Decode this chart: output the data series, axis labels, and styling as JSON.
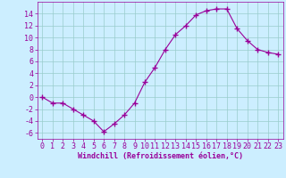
{
  "x": [
    0,
    1,
    2,
    3,
    4,
    5,
    6,
    7,
    8,
    9,
    10,
    11,
    12,
    13,
    14,
    15,
    16,
    17,
    18,
    19,
    20,
    21,
    22,
    23
  ],
  "y": [
    0,
    -1,
    -1,
    -2,
    -3,
    -4,
    -5.8,
    -4.5,
    -3,
    -1,
    2.5,
    5,
    8,
    10.5,
    12,
    13.8,
    14.5,
    14.8,
    14.8,
    11.5,
    9.5,
    8,
    7.5,
    7.2
  ],
  "line_color": "#990099",
  "marker": "+",
  "marker_size": 4,
  "bg_color": "#cceeff",
  "grid_color": "#99cccc",
  "xlabel": "Windchill (Refroidissement éolien,°C)",
  "ylim": [
    -7,
    16
  ],
  "yticks": [
    -6,
    -4,
    -2,
    0,
    2,
    4,
    6,
    8,
    10,
    12,
    14
  ],
  "xlim": [
    -0.5,
    23.5
  ],
  "xticks": [
    0,
    1,
    2,
    3,
    4,
    5,
    6,
    7,
    8,
    9,
    10,
    11,
    12,
    13,
    14,
    15,
    16,
    17,
    18,
    19,
    20,
    21,
    22,
    23
  ],
  "axis_fontsize": 6,
  "tick_fontsize": 6
}
